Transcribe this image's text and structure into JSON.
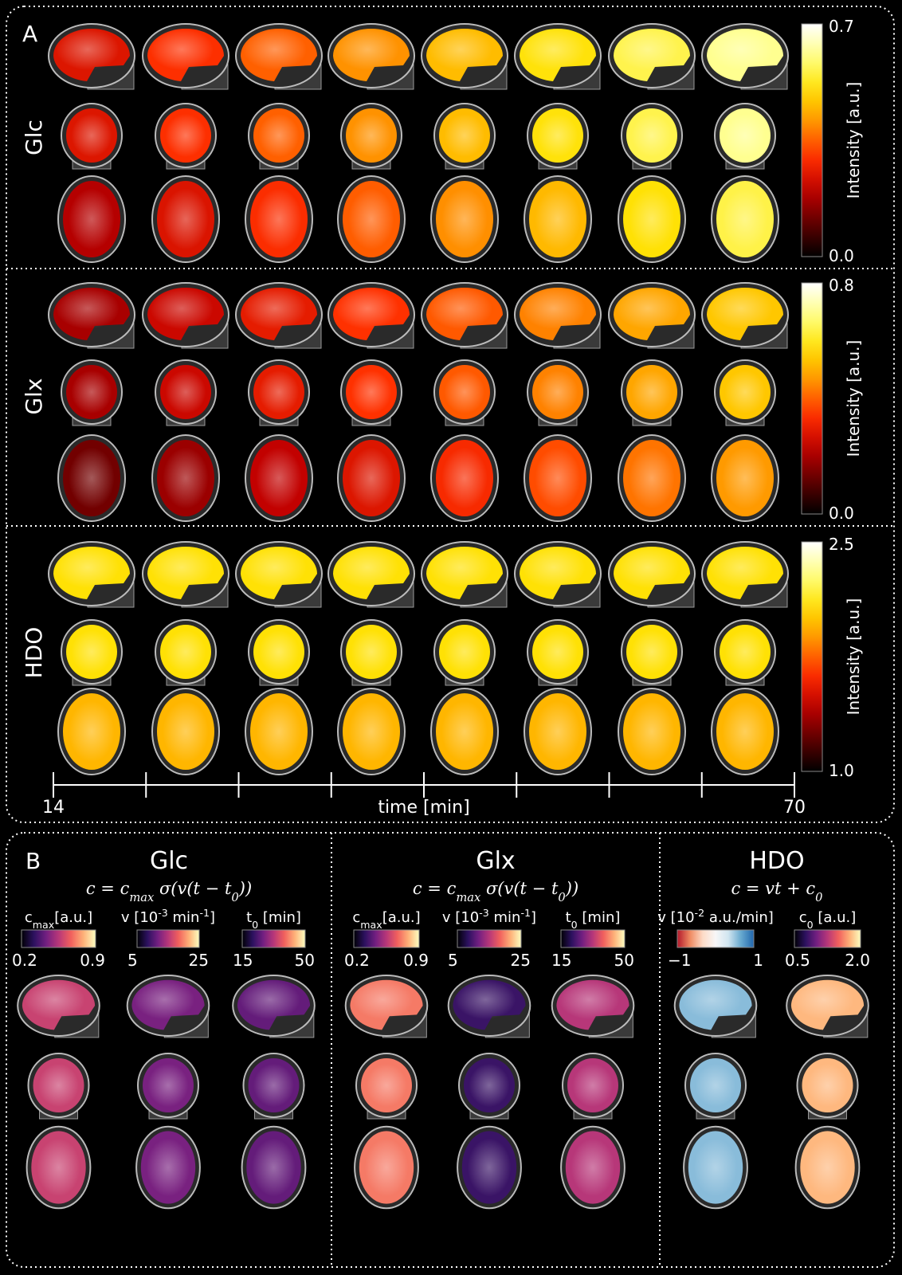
{
  "panel_a": {
    "label": "A",
    "rows": [
      {
        "name": "Glc",
        "colormap": "hot",
        "colorbar": {
          "label": "Intensity [a.u.]",
          "max": "0.7",
          "min": "0.0"
        }
      },
      {
        "name": "Glx",
        "colormap": "hot",
        "colorbar": {
          "label": "Intensity [a.u.]",
          "max": "0.8",
          "min": "0.0"
        }
      },
      {
        "name": "HDO",
        "colormap": "hot",
        "colorbar": {
          "label": "Intensity [a.u.]",
          "max": "2.5",
          "min": "1.0"
        }
      }
    ],
    "time_axis": {
      "start": "14",
      "end": "70",
      "label": "time [min]"
    }
  },
  "panel_b": {
    "label": "B",
    "groups": [
      {
        "title": "Glc",
        "equation": [
          "c = c",
          "max",
          " σ(v(t − t",
          "0",
          "))"
        ],
        "maps": [
          {
            "label": [
              "c",
              "max",
              "[a.u.]"
            ],
            "script": "sub",
            "min": "0.2",
            "max": "0.9",
            "colormap": "magma"
          },
          {
            "label": [
              "v [10",
              "-3",
              " min",
              "-1",
              "]"
            ],
            "script": "sup",
            "min": "5",
            "max": "25",
            "colormap": "magma"
          },
          {
            "label": [
              "t",
              "0",
              " [min]"
            ],
            "script": "sub",
            "min": "15",
            "max": "50",
            "colormap": "magma"
          }
        ]
      },
      {
        "title": "Glx",
        "equation": [
          "c = c",
          "max",
          " σ(v(t − t",
          "0",
          "))"
        ],
        "maps": [
          {
            "label": [
              "c",
              "max",
              "[a.u.]"
            ],
            "script": "sub",
            "min": "0.2",
            "max": "0.9",
            "colormap": "magma"
          },
          {
            "label": [
              "v [10",
              "-3",
              " min",
              "-1",
              "]"
            ],
            "script": "sup",
            "min": "5",
            "max": "25",
            "colormap": "magma"
          },
          {
            "label": [
              "t",
              "0",
              " [min]"
            ],
            "script": "sub",
            "min": "15",
            "max": "50",
            "colormap": "magma"
          }
        ]
      },
      {
        "title": "HDO",
        "equation": [
          "c = vt + c",
          "0"
        ],
        "maps": [
          {
            "label": [
              "v [10",
              "-2",
              " a.u./min]"
            ],
            "script": "sup",
            "min": "−1",
            "max": "1",
            "colormap": "rdbu"
          },
          {
            "label": [
              "c",
              "0",
              " [a.u.]"
            ],
            "script": "sub",
            "min": "0.5",
            "max": "2.0",
            "colormap": "magma"
          }
        ]
      }
    ]
  }
}
